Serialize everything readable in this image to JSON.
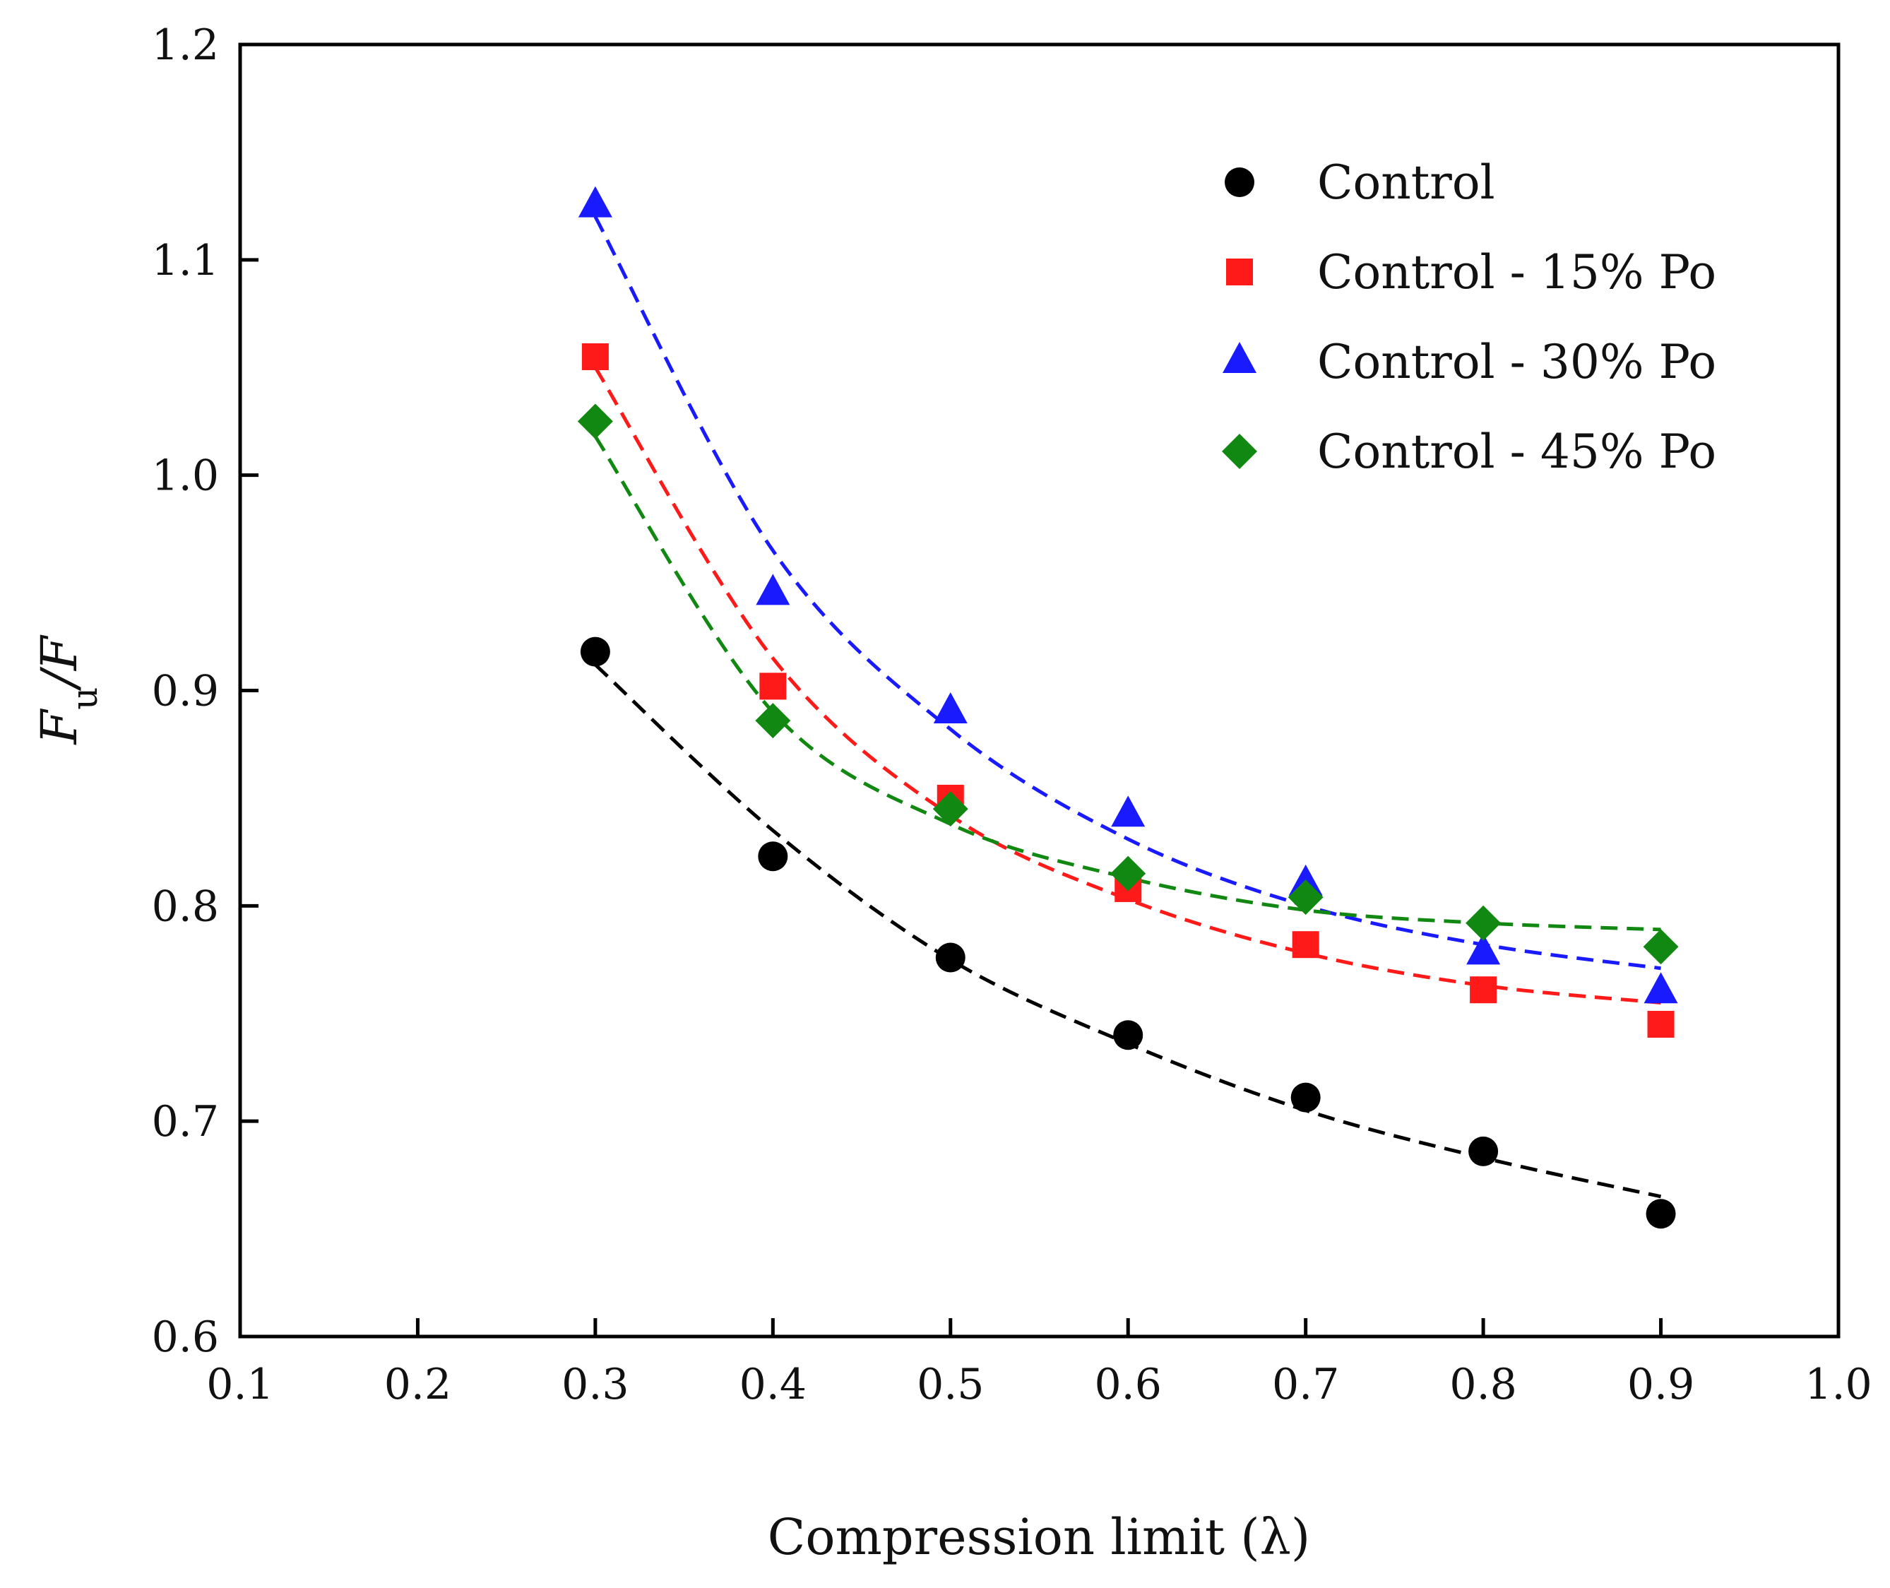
{
  "chart_data": {
    "type": "scatter",
    "title": "",
    "xlabel": "Compression limit (λ)",
    "ylabel": {
      "main": "F",
      "sub": "u",
      "rest": "/F"
    },
    "xlim": [
      0.1,
      1.0
    ],
    "ylim": [
      0.6,
      1.2
    ],
    "xticks": [
      "0.1",
      "0.2",
      "0.3",
      "0.4",
      "0.5",
      "0.6",
      "0.7",
      "0.8",
      "0.9",
      "1.0"
    ],
    "yticks": [
      "0.6",
      "0.7",
      "0.8",
      "0.9",
      "1.0",
      "1.1",
      "1.2"
    ],
    "legend_position": "top-right",
    "x": [
      0.3,
      0.4,
      0.5,
      0.6,
      0.7,
      0.8,
      0.9
    ],
    "series": [
      {
        "name": "Control",
        "marker": "circle",
        "color": "#000000",
        "values": [
          0.918,
          0.823,
          0.776,
          0.74,
          0.711,
          0.686,
          0.657
        ],
        "fit": [
          0.912,
          0.835,
          0.775,
          0.736,
          0.705,
          0.683,
          0.665
        ]
      },
      {
        "name": "Control - 15% Po",
        "marker": "square",
        "color": "#ff1a1a",
        "values": [
          1.055,
          0.902,
          0.85,
          0.808,
          0.782,
          0.761,
          0.745
        ],
        "fit": [
          1.05,
          0.915,
          0.842,
          0.803,
          0.778,
          0.763,
          0.755
        ]
      },
      {
        "name": "Control - 30% Po",
        "marker": "triangle",
        "color": "#1a1aff",
        "values": [
          1.125,
          0.945,
          0.89,
          0.842,
          0.81,
          0.778,
          0.76
        ],
        "fit": [
          1.12,
          0.965,
          0.882,
          0.831,
          0.8,
          0.782,
          0.771
        ]
      },
      {
        "name": "Control - 45% Po",
        "marker": "diamond",
        "color": "#118811",
        "values": [
          1.025,
          0.886,
          0.845,
          0.815,
          0.804,
          0.792,
          0.781
        ],
        "fit": [
          1.018,
          0.89,
          0.838,
          0.813,
          0.798,
          0.792,
          0.789
        ]
      }
    ]
  }
}
